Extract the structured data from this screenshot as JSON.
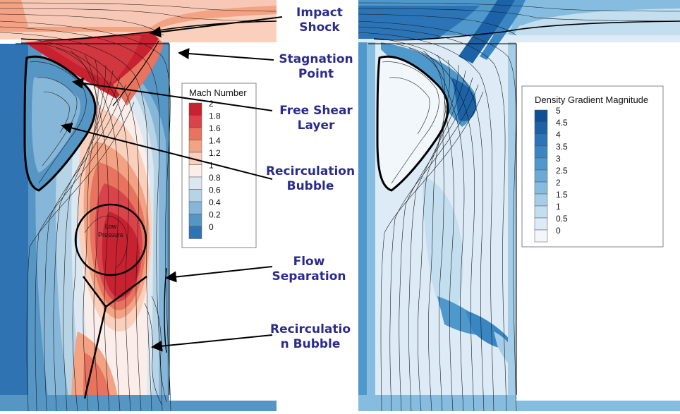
{
  "left_panel": {
    "legend": {
      "title": "Mach Number",
      "levels": [
        "2",
        "1.8",
        "1.6",
        "1.4",
        "1.2",
        "1",
        "0.8",
        "0.6",
        "0.4",
        "0.2",
        "0"
      ],
      "colors": [
        "#c8212f",
        "#d8444a",
        "#e8735f",
        "#f3a383",
        "#fad0bd",
        "#fbeeea",
        "#dbe8f1",
        "#b7d4e7",
        "#86b7d8",
        "#5596c5",
        "#2f73b2"
      ]
    },
    "low_pressure_label": [
      "Low",
      "Pressure"
    ]
  },
  "right_panel": {
    "legend": {
      "title": "Density Gradient Magnitude",
      "levels": [
        "5",
        "4.5",
        "4",
        "3.5",
        "3",
        "2.5",
        "2",
        "1.5",
        "1",
        "0.5",
        "0"
      ],
      "colors": [
        "#0e4f95",
        "#1c62a8",
        "#2a74b7",
        "#3a86c2",
        "#4f98cc",
        "#69aad6",
        "#86bcdf",
        "#a5cde7",
        "#c3deef",
        "#dcebf6",
        "#f2f7fb"
      ]
    }
  },
  "callouts": [
    {
      "id": "impact-shock",
      "lines": [
        "Impact",
        "Shock"
      ]
    },
    {
      "id": "stagnation-point",
      "lines": [
        "Stagnation",
        "Point"
      ]
    },
    {
      "id": "free-shear-layer",
      "lines": [
        "Free Shear",
        "Layer"
      ]
    },
    {
      "id": "recirculation-bubble-1",
      "lines": [
        "Recirculation",
        "Bubble"
      ]
    },
    {
      "id": "flow-separation",
      "lines": [
        "Flow",
        "Separation"
      ]
    },
    {
      "id": "recirculation-bubble-2",
      "lines": [
        "Recirculatio",
        "n Bubble"
      ]
    }
  ],
  "colors": {
    "callout_text": "#2b2b8c",
    "wall": "#ffffff",
    "streamline": "#1a1a1a"
  }
}
